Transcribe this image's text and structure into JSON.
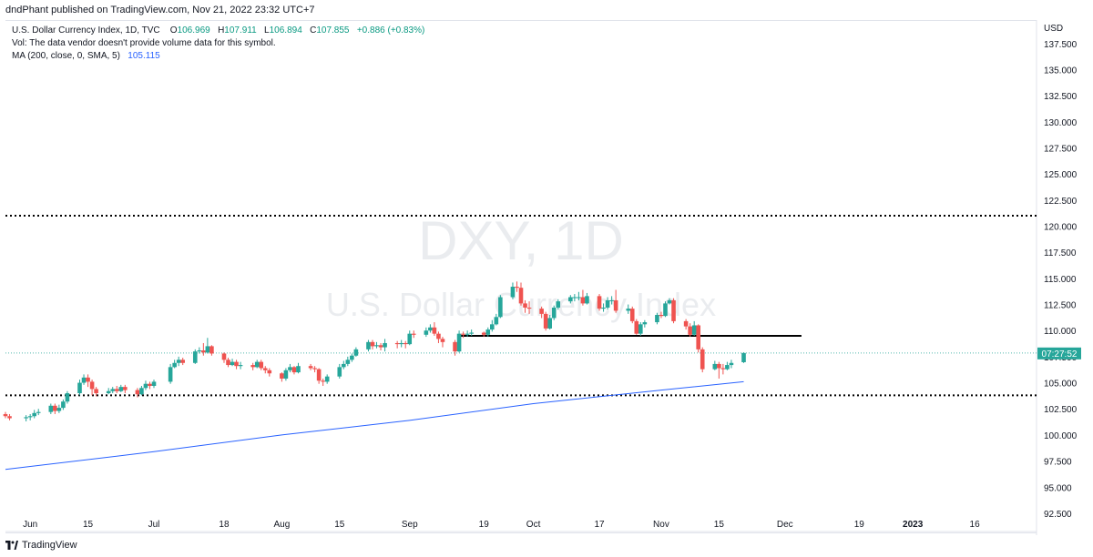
{
  "header": {
    "published": "dndPhant published on TradingView.com, Nov 21, 2022 23:32 UTC+7"
  },
  "legend": {
    "symbol": "U.S. Dollar Currency Index, 1D, TVC",
    "ohlc": {
      "o_label": "O",
      "o": "106.969",
      "h_label": "H",
      "h": "107.911",
      "l_label": "L",
      "l": "106.894",
      "c_label": "C",
      "c": "107.855",
      "change": "+0.886 (+0.83%)"
    },
    "vol_note": "Vol: The data vendor doesn't provide volume data for this symbol.",
    "ma_label": "MA (200, close, 0, SMA, 5)",
    "ma_value": "105.115"
  },
  "watermark": {
    "ticker": "DXY, 1D",
    "name": "U.S. Dollar Currency Index"
  },
  "footer": {
    "brand": "TradingView"
  },
  "colors": {
    "up": "#26a69a",
    "down": "#ef5350",
    "ma": "#2962ff",
    "last_price_bg": "#26a69a",
    "level_line": "#000000"
  },
  "chart_data": {
    "type": "candlestick",
    "y_axis": {
      "unit": "USD",
      "range": [
        90.75,
        139.75
      ],
      "ticks": [
        "92.500",
        "95.000",
        "97.500",
        "100.000",
        "102.500",
        "105.000",
        "107.500",
        "110.000",
        "112.500",
        "115.000",
        "117.500",
        "120.000",
        "122.500",
        "125.000",
        "127.500",
        "130.000",
        "132.500",
        "135.000",
        "137.500"
      ]
    },
    "x_axis": {
      "range": [
        "2022-05-26",
        "2023-01-31"
      ],
      "ticks": [
        {
          "date": "2022-06-01",
          "label": "Jun"
        },
        {
          "date": "2022-06-15",
          "label": "15"
        },
        {
          "date": "2022-07-01",
          "label": "Jul"
        },
        {
          "date": "2022-07-18",
          "label": "18"
        },
        {
          "date": "2022-08-01",
          "label": "Aug"
        },
        {
          "date": "2022-08-15",
          "label": "15"
        },
        {
          "date": "2022-09-01",
          "label": "Sep"
        },
        {
          "date": "2022-09-19",
          "label": "19"
        },
        {
          "date": "2022-10-01",
          "label": "Oct"
        },
        {
          "date": "2022-10-17",
          "label": "17"
        },
        {
          "date": "2022-11-01",
          "label": "Nov"
        },
        {
          "date": "2022-11-15",
          "label": "15"
        },
        {
          "date": "2022-12-01",
          "label": "Dec"
        },
        {
          "date": "2022-12-19",
          "label": "19"
        },
        {
          "date": "2023-01-01",
          "label": "2023"
        },
        {
          "date": "2023-01-16",
          "label": "16"
        }
      ]
    },
    "last_price": {
      "value": 107.855,
      "label": "07:27:52"
    },
    "horizontal_lines": [
      {
        "value": 121.0,
        "style": "dotted"
      },
      {
        "value": 103.8,
        "style": "dotted"
      },
      {
        "value": 109.5,
        "style": "solid",
        "from": "2022-09-13",
        "to": "2022-12-05"
      }
    ],
    "ma_series": {
      "name": "MA (200, close, 0, SMA, 5)",
      "points": [
        [
          "2022-05-26",
          96.7
        ],
        [
          "2022-07-01",
          98.4
        ],
        [
          "2022-08-01",
          100.0
        ],
        [
          "2022-09-01",
          101.4
        ],
        [
          "2022-10-01",
          103.0
        ],
        [
          "2022-11-01",
          104.3
        ],
        [
          "2022-11-21",
          105.1
        ]
      ]
    },
    "candles": [
      [
        "2022-05-26",
        102.0,
        101.8,
        102.2,
        101.6
      ],
      [
        "2022-05-27",
        101.8,
        101.6,
        102.0,
        101.4
      ],
      [
        "2022-05-31",
        101.6,
        101.7,
        101.9,
        101.3
      ],
      [
        "2022-06-01",
        101.7,
        101.8,
        102.0,
        101.4
      ],
      [
        "2022-06-02",
        101.8,
        102.1,
        102.4,
        101.6
      ],
      [
        "2022-06-03",
        102.1,
        102.2,
        102.5,
        101.9
      ],
      [
        "2022-06-06",
        102.2,
        102.8,
        103.0,
        102.0
      ],
      [
        "2022-06-07",
        102.8,
        102.3,
        103.0,
        102.0
      ],
      [
        "2022-06-08",
        102.3,
        102.6,
        102.9,
        102.1
      ],
      [
        "2022-06-09",
        102.6,
        103.2,
        103.4,
        102.4
      ],
      [
        "2022-06-10",
        103.2,
        104.0,
        104.2,
        103.0
      ],
      [
        "2022-06-13",
        104.0,
        105.0,
        105.3,
        103.8
      ],
      [
        "2022-06-14",
        105.0,
        105.5,
        105.8,
        104.8
      ],
      [
        "2022-06-15",
        105.5,
        105.1,
        105.8,
        104.6
      ],
      [
        "2022-06-16",
        105.1,
        104.4,
        105.3,
        103.8
      ],
      [
        "2022-06-17",
        104.4,
        104.0,
        104.6,
        103.7
      ],
      [
        "2022-06-20",
        104.0,
        104.2,
        104.5,
        103.9
      ],
      [
        "2022-06-21",
        104.2,
        104.4,
        104.6,
        104.0
      ],
      [
        "2022-06-22",
        104.4,
        104.2,
        104.7,
        104.0
      ],
      [
        "2022-06-23",
        104.2,
        104.6,
        104.8,
        104.1
      ],
      [
        "2022-06-24",
        104.6,
        104.3,
        104.8,
        104.0
      ],
      [
        "2022-06-27",
        104.3,
        103.9,
        104.5,
        103.6
      ],
      [
        "2022-06-28",
        103.9,
        104.5,
        104.7,
        103.8
      ],
      [
        "2022-06-29",
        104.5,
        104.9,
        105.2,
        104.3
      ],
      [
        "2022-06-30",
        104.9,
        104.7,
        105.1,
        104.4
      ],
      [
        "2022-07-01",
        104.7,
        105.1,
        105.3,
        104.5
      ],
      [
        "2022-07-05",
        105.1,
        106.5,
        106.8,
        104.9
      ],
      [
        "2022-07-06",
        106.5,
        106.9,
        107.2,
        106.4
      ],
      [
        "2022-07-07",
        106.9,
        107.2,
        107.5,
        106.6
      ],
      [
        "2022-07-08",
        107.2,
        106.9,
        107.4,
        106.7
      ],
      [
        "2022-07-11",
        106.9,
        108.0,
        108.2,
        106.8
      ],
      [
        "2022-07-12",
        108.0,
        108.1,
        108.4,
        107.8
      ],
      [
        "2022-07-13",
        108.1,
        107.9,
        108.8,
        107.6
      ],
      [
        "2022-07-14",
        107.9,
        108.5,
        109.3,
        107.8
      ],
      [
        "2022-07-15",
        108.5,
        107.8,
        108.6,
        107.6
      ],
      [
        "2022-07-18",
        107.8,
        107.2,
        107.9,
        106.9
      ],
      [
        "2022-07-19",
        107.2,
        106.7,
        107.4,
        106.5
      ],
      [
        "2022-07-20",
        106.7,
        107.0,
        107.3,
        106.6
      ],
      [
        "2022-07-21",
        107.0,
        106.6,
        107.2,
        106.3
      ],
      [
        "2022-07-22",
        106.6,
        106.7,
        107.0,
        106.3
      ],
      [
        "2022-07-25",
        106.7,
        106.5,
        106.9,
        106.2
      ],
      [
        "2022-07-26",
        106.5,
        107.0,
        107.2,
        106.4
      ],
      [
        "2022-07-27",
        107.0,
        106.4,
        107.2,
        106.2
      ],
      [
        "2022-07-28",
        106.4,
        106.2,
        106.6,
        105.9
      ],
      [
        "2022-07-29",
        106.2,
        105.9,
        106.4,
        105.6
      ],
      [
        "2022-08-01",
        105.9,
        105.4,
        106.0,
        105.1
      ],
      [
        "2022-08-02",
        105.4,
        106.2,
        106.4,
        105.2
      ],
      [
        "2022-08-03",
        106.2,
        106.5,
        106.8,
        106.0
      ],
      [
        "2022-08-04",
        106.5,
        106.0,
        106.6,
        105.8
      ],
      [
        "2022-08-05",
        106.0,
        106.6,
        106.9,
        105.9
      ],
      [
        "2022-08-08",
        106.6,
        106.4,
        106.8,
        106.2
      ],
      [
        "2022-08-09",
        106.4,
        106.3,
        106.6,
        106.0
      ],
      [
        "2022-08-10",
        106.3,
        105.2,
        106.4,
        104.9
      ],
      [
        "2022-08-11",
        105.2,
        105.1,
        105.4,
        104.7
      ],
      [
        "2022-08-12",
        105.1,
        105.6,
        105.8,
        104.9
      ],
      [
        "2022-08-15",
        105.6,
        106.5,
        106.8,
        105.4
      ],
      [
        "2022-08-16",
        106.5,
        106.8,
        107.1,
        106.3
      ],
      [
        "2022-08-17",
        106.8,
        107.2,
        107.5,
        106.6
      ],
      [
        "2022-08-18",
        107.2,
        107.6,
        107.8,
        107.0
      ],
      [
        "2022-08-19",
        107.6,
        108.2,
        108.4,
        107.5
      ],
      [
        "2022-08-22",
        108.2,
        108.9,
        109.1,
        108.0
      ],
      [
        "2022-08-23",
        108.9,
        108.5,
        109.1,
        108.2
      ],
      [
        "2022-08-24",
        108.5,
        108.6,
        108.9,
        108.3
      ],
      [
        "2022-08-25",
        108.6,
        108.4,
        108.8,
        108.1
      ],
      [
        "2022-08-26",
        108.4,
        108.8,
        109.2,
        108.0
      ],
      [
        "2022-08-29",
        108.8,
        108.7,
        109.0,
        108.3
      ],
      [
        "2022-08-30",
        108.7,
        108.8,
        109.1,
        108.4
      ],
      [
        "2022-08-31",
        108.8,
        108.7,
        109.0,
        108.3
      ],
      [
        "2022-09-01",
        108.7,
        109.7,
        110.0,
        108.6
      ],
      [
        "2022-09-02",
        109.7,
        109.6,
        110.0,
        109.3
      ],
      [
        "2022-09-05",
        109.6,
        110.0,
        110.3,
        109.4
      ],
      [
        "2022-09-06",
        110.0,
        110.3,
        110.6,
        109.8
      ],
      [
        "2022-09-07",
        110.3,
        109.7,
        110.8,
        109.5
      ],
      [
        "2022-09-08",
        109.7,
        109.2,
        109.9,
        108.8
      ],
      [
        "2022-09-09",
        109.2,
        108.9,
        109.4,
        108.4
      ],
      [
        "2022-09-12",
        108.9,
        108.0,
        109.1,
        107.6
      ],
      [
        "2022-09-13",
        108.0,
        109.7,
        110.0,
        107.9
      ],
      [
        "2022-09-14",
        109.7,
        109.6,
        109.9,
        109.3
      ],
      [
        "2022-09-15",
        109.6,
        109.7,
        110.0,
        109.4
      ],
      [
        "2022-09-16",
        109.7,
        109.8,
        110.1,
        109.5
      ],
      [
        "2022-09-19",
        109.8,
        109.6,
        109.9,
        109.4
      ],
      [
        "2022-09-20",
        109.6,
        110.1,
        110.3,
        109.4
      ],
      [
        "2022-09-21",
        110.1,
        110.6,
        111.0,
        109.9
      ],
      [
        "2022-09-22",
        110.6,
        111.3,
        111.6,
        110.5
      ],
      [
        "2022-09-23",
        111.3,
        113.2,
        113.4,
        111.2
      ],
      [
        "2022-09-26",
        113.2,
        114.2,
        114.6,
        113.0
      ],
      [
        "2022-09-27",
        114.2,
        114.1,
        114.7,
        113.7
      ],
      [
        "2022-09-28",
        114.1,
        112.6,
        114.6,
        112.4
      ],
      [
        "2022-09-29",
        112.6,
        112.2,
        112.9,
        111.7
      ],
      [
        "2022-09-30",
        112.2,
        112.1,
        112.8,
        111.6
      ],
      [
        "2022-10-03",
        112.1,
        111.6,
        112.3,
        111.2
      ],
      [
        "2022-10-04",
        111.6,
        110.2,
        111.8,
        110.0
      ],
      [
        "2022-10-05",
        110.2,
        111.2,
        111.5,
        110.1
      ],
      [
        "2022-10-06",
        111.2,
        112.2,
        112.4,
        111.0
      ],
      [
        "2022-10-07",
        112.2,
        112.8,
        113.0,
        112.0
      ],
      [
        "2022-10-10",
        112.8,
        113.2,
        113.4,
        112.6
      ],
      [
        "2022-10-11",
        113.2,
        113.2,
        113.5,
        112.8
      ],
      [
        "2022-10-12",
        113.2,
        113.2,
        113.7,
        112.9
      ],
      [
        "2022-10-13",
        113.2,
        112.6,
        113.9,
        112.4
      ],
      [
        "2022-10-14",
        112.6,
        113.3,
        113.6,
        112.5
      ],
      [
        "2022-10-17",
        113.3,
        112.1,
        113.5,
        111.9
      ],
      [
        "2022-10-18",
        112.1,
        112.2,
        112.6,
        111.8
      ],
      [
        "2022-10-19",
        112.2,
        112.9,
        113.2,
        112.0
      ],
      [
        "2022-10-20",
        112.9,
        112.9,
        113.3,
        112.5
      ],
      [
        "2022-10-21",
        112.9,
        111.9,
        113.9,
        111.7
      ],
      [
        "2022-10-24",
        111.9,
        112.1,
        112.5,
        111.6
      ],
      [
        "2022-10-25",
        112.1,
        110.9,
        112.3,
        110.7
      ],
      [
        "2022-10-26",
        110.9,
        109.7,
        111.1,
        109.6
      ],
      [
        "2022-10-27",
        109.7,
        110.6,
        110.8,
        109.5
      ],
      [
        "2022-10-28",
        110.6,
        110.8,
        111.0,
        110.3
      ],
      [
        "2022-10-31",
        110.8,
        111.5,
        111.7,
        110.6
      ],
      [
        "2022-11-01",
        111.5,
        111.4,
        111.8,
        111.2
      ],
      [
        "2022-11-02",
        111.4,
        112.6,
        112.8,
        111.3
      ],
      [
        "2022-11-03",
        112.6,
        112.9,
        113.1,
        112.5
      ],
      [
        "2022-11-04",
        112.9,
        110.9,
        113.1,
        110.7
      ],
      [
        "2022-11-07",
        110.9,
        110.4,
        111.1,
        110.1
      ],
      [
        "2022-11-08",
        110.4,
        109.6,
        110.7,
        109.4
      ],
      [
        "2022-11-09",
        109.6,
        110.5,
        110.9,
        109.5
      ],
      [
        "2022-11-10",
        110.5,
        108.2,
        110.6,
        107.9
      ],
      [
        "2022-11-11",
        108.2,
        106.3,
        108.4,
        106.0
      ],
      [
        "2022-11-14",
        106.3,
        106.8,
        107.1,
        106.2
      ],
      [
        "2022-11-15",
        106.8,
        106.4,
        107.0,
        105.4
      ],
      [
        "2022-11-16",
        106.4,
        106.3,
        106.8,
        105.8
      ],
      [
        "2022-11-17",
        106.3,
        106.7,
        107.0,
        106.2
      ],
      [
        "2022-11-18",
        106.7,
        106.9,
        107.2,
        106.4
      ],
      [
        "2022-11-21",
        106.969,
        107.855,
        107.911,
        106.894
      ]
    ]
  }
}
